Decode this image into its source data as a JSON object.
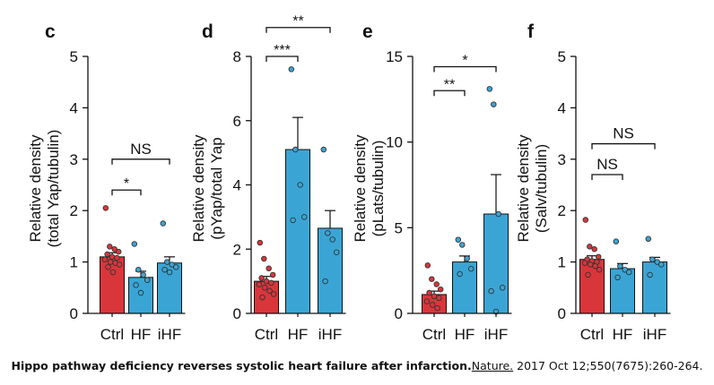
{
  "colors": {
    "ctrl": "#d9363b",
    "treated": "#3aa5d5",
    "ink": "#111111"
  },
  "chart_data": [
    {
      "panel": "c",
      "type": "bar",
      "ylabel": [
        "Relative density",
        "(total Yap/tubulin)"
      ],
      "ylim": [
        0,
        5
      ],
      "yticks": [
        0,
        1,
        2,
        3,
        4,
        5
      ],
      "categories": [
        "Ctrl",
        "HF",
        "iHF"
      ],
      "values": [
        1.1,
        0.7,
        0.98
      ],
      "errors": [
        0.08,
        0.12,
        0.12
      ],
      "points": [
        [
          2.05,
          1.3,
          1.25,
          1.2,
          1.15,
          1.1,
          1.08,
          1.05,
          1.0,
          0.98,
          0.95,
          0.9,
          0.8
        ],
        [
          1.35,
          0.85,
          0.75,
          0.65,
          0.55,
          0.4
        ],
        [
          1.75,
          1.0,
          0.95,
          0.9,
          0.85,
          0.8
        ]
      ],
      "annotations": [
        {
          "label": "*",
          "from": 0,
          "to": 1,
          "y": 2.4
        },
        {
          "label": "NS",
          "from": 0,
          "to": 2,
          "y": 3.0
        }
      ]
    },
    {
      "panel": "d",
      "type": "bar",
      "ylabel": [
        "Relative density",
        "(pYap/total Yap"
      ],
      "ylim": [
        0,
        8
      ],
      "yticks": [
        0,
        2,
        4,
        6,
        8
      ],
      "categories": [
        "Ctrl",
        "HF",
        "iHF"
      ],
      "values": [
        1.0,
        5.1,
        2.65
      ],
      "errors": [
        0.15,
        1.0,
        0.55
      ],
      "points": [
        [
          2.2,
          1.7,
          1.4,
          1.2,
          1.1,
          1.0,
          0.95,
          0.9,
          0.8,
          0.7,
          0.6,
          0.5
        ],
        [
          7.6,
          5.1,
          4.0,
          3.0,
          2.9
        ],
        [
          5.1,
          2.5,
          2.3,
          1.9,
          1.0
        ]
      ],
      "annotations": [
        {
          "label": "***",
          "from": 0,
          "to": 1,
          "y": 8.0
        },
        {
          "label": "**",
          "from": 0,
          "to": 2,
          "y": 8.9
        }
      ]
    },
    {
      "panel": "e",
      "type": "bar",
      "ylabel": [
        "Relative density",
        "(pLats/tubulin)"
      ],
      "ylim": [
        0,
        15
      ],
      "yticks": [
        0,
        5,
        10,
        15
      ],
      "categories": [
        "Ctrl",
        "HF",
        "iHF"
      ],
      "values": [
        1.1,
        3.0,
        5.8
      ],
      "errors": [
        0.2,
        0.35,
        2.3
      ],
      "points": [
        [
          2.8,
          2.0,
          1.7,
          1.4,
          1.2,
          1.0,
          0.9,
          0.7,
          0.5,
          0.3
        ],
        [
          4.3,
          4.0,
          3.2,
          2.6,
          2.3
        ],
        [
          13.1,
          12.2,
          5.8,
          1.5,
          1.3,
          0.1
        ]
      ],
      "annotations": [
        {
          "label": "**",
          "from": 0,
          "to": 1,
          "y": 13.0
        },
        {
          "label": "*",
          "from": 0,
          "to": 2,
          "y": 14.4
        }
      ]
    },
    {
      "panel": "f",
      "type": "bar",
      "ylabel": [
        "Relative density",
        "(Salv/tubulin)"
      ],
      "ylim": [
        0,
        5
      ],
      "yticks": [
        0,
        1,
        2,
        3,
        4,
        5
      ],
      "categories": [
        "Ctrl",
        "HF",
        "iHF"
      ],
      "values": [
        1.05,
        0.87,
        1.0
      ],
      "errors": [
        0.07,
        0.1,
        0.09
      ],
      "points": [
        [
          1.82,
          1.3,
          1.25,
          1.1,
          1.05,
          1.02,
          1.0,
          0.98,
          0.95,
          0.92,
          0.85,
          0.75
        ],
        [
          1.4,
          0.92,
          0.85,
          0.8,
          0.7
        ],
        [
          1.45,
          1.05,
          1.0,
          0.95,
          0.75
        ]
      ],
      "annotations": [
        {
          "label": "NS",
          "from": 0,
          "to": 1,
          "y": 2.7
        },
        {
          "label": "NS",
          "from": 0,
          "to": 2,
          "y": 3.3
        }
      ]
    }
  ],
  "caption": {
    "title": "Hippo pathway deficiency reverses systolic heart failure after infarction.",
    "journal": "Nature.",
    "citation": " 2017 Oct 12;550(7675):260-264."
  }
}
